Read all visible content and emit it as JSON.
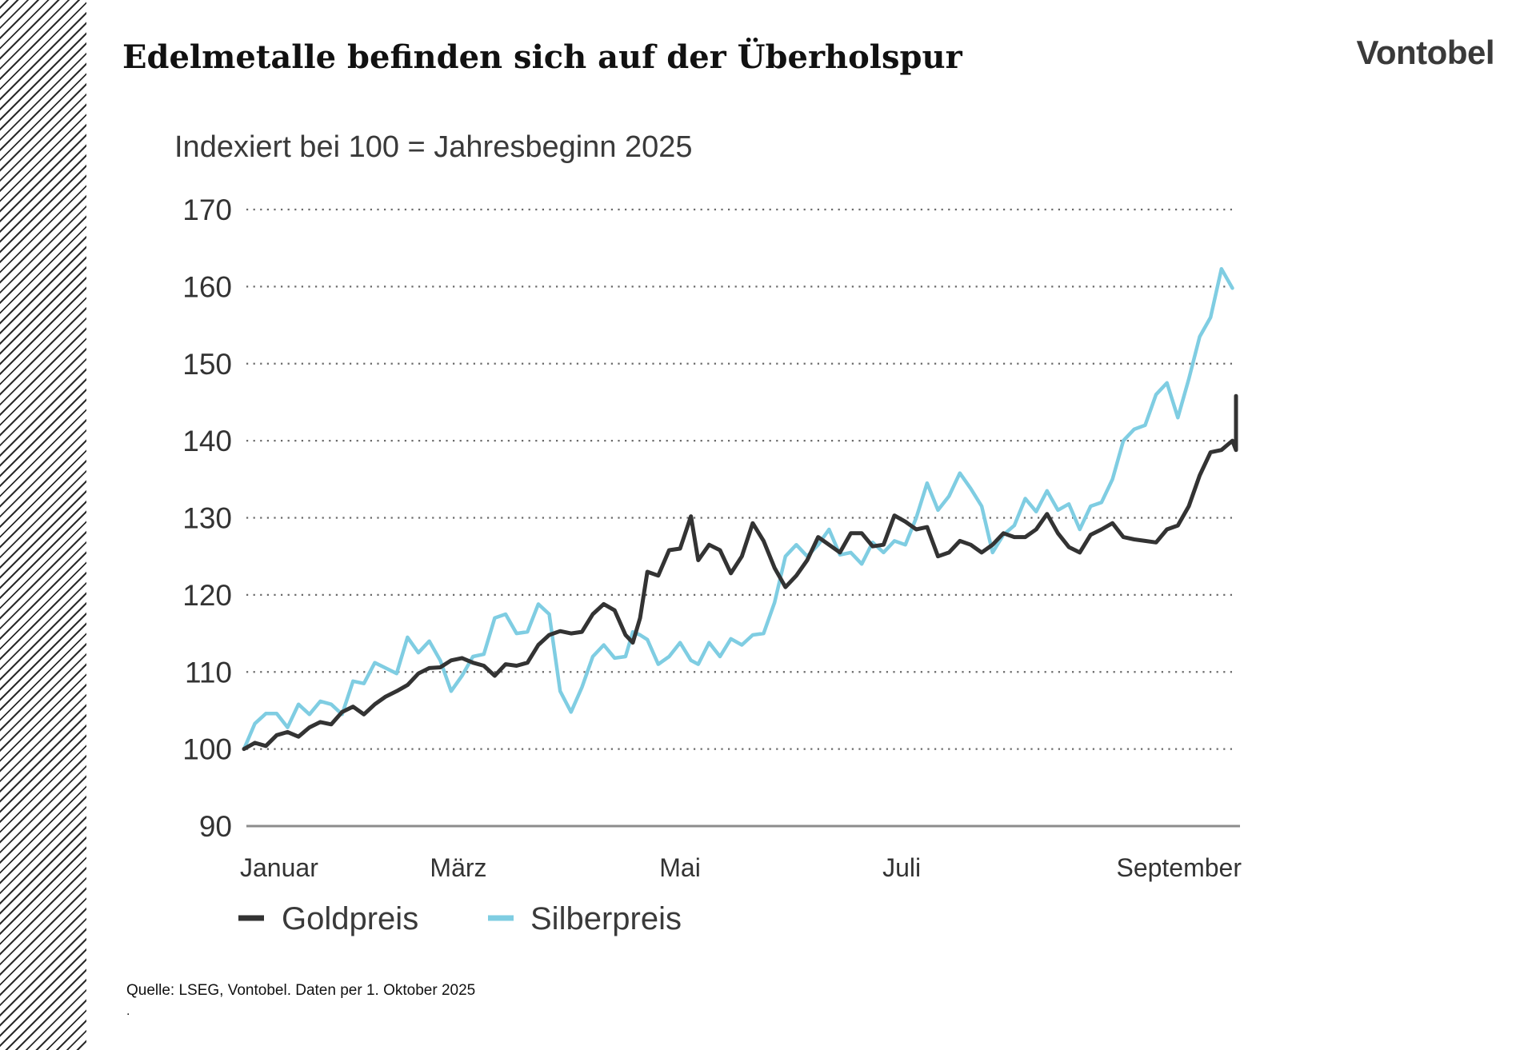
{
  "header": {
    "title": "Edelmetalle befinden sich auf der Überholspur",
    "logo": "Vontobel"
  },
  "footer": {
    "source": "Quelle: LSEG, Vontobel. Daten per 1. Oktober 2025",
    "dot": "."
  },
  "colors": {
    "gold": "#333333",
    "silver": "#7fcde2"
  },
  "chart_data": {
    "type": "line",
    "subtitle": "Indexiert bei 100 = Jahresbeginn 2025",
    "xlabel": "",
    "ylabel": "",
    "ylim": [
      90,
      170
    ],
    "yticks": [
      "170",
      "160",
      "150",
      "140",
      "130",
      "120",
      "110",
      "100",
      "90"
    ],
    "grid": true,
    "legend_position": "bottom-left",
    "x_domain": [
      "2025-01-01",
      "2025-10-01"
    ],
    "x_tick_labels": [
      {
        "label": "Januar",
        "date": "2025-01-01"
      },
      {
        "label": "März",
        "date": "2025-03-01"
      },
      {
        "label": "Mai",
        "date": "2025-05-01"
      },
      {
        "label": "Juli",
        "date": "2025-07-01"
      },
      {
        "label": "September",
        "date": "2025-09-01"
      }
    ],
    "series": [
      {
        "name": "Goldpreis",
        "points": [
          [
            "2025-01-01",
            100
          ],
          [
            "2025-01-04",
            100.8
          ],
          [
            "2025-01-07",
            100.4
          ],
          [
            "2025-01-10",
            101.8
          ],
          [
            "2025-01-13",
            102.2
          ],
          [
            "2025-01-16",
            101.6
          ],
          [
            "2025-01-19",
            102.8
          ],
          [
            "2025-01-22",
            103.5
          ],
          [
            "2025-01-25",
            103.2
          ],
          [
            "2025-01-28",
            104.8
          ],
          [
            "2025-01-31",
            105.5
          ],
          [
            "2025-02-03",
            104.5
          ],
          [
            "2025-02-06",
            105.8
          ],
          [
            "2025-02-09",
            106.8
          ],
          [
            "2025-02-12",
            107.5
          ],
          [
            "2025-02-15",
            108.3
          ],
          [
            "2025-02-18",
            109.8
          ],
          [
            "2025-02-21",
            110.5
          ],
          [
            "2025-02-24",
            110.6
          ],
          [
            "2025-02-27",
            111.5
          ],
          [
            "2025-03-02",
            111.8
          ],
          [
            "2025-03-05",
            111.2
          ],
          [
            "2025-03-08",
            110.8
          ],
          [
            "2025-03-11",
            109.5
          ],
          [
            "2025-03-14",
            111
          ],
          [
            "2025-03-17",
            110.8
          ],
          [
            "2025-03-20",
            111.2
          ],
          [
            "2025-03-23",
            113.5
          ],
          [
            "2025-03-26",
            114.8
          ],
          [
            "2025-03-29",
            115.3
          ],
          [
            "2025-04-01",
            115
          ],
          [
            "2025-04-04",
            115.2
          ],
          [
            "2025-04-07",
            117.5
          ],
          [
            "2025-04-10",
            118.8
          ],
          [
            "2025-04-13",
            118
          ],
          [
            "2025-04-16",
            114.8
          ],
          [
            "2025-04-18",
            113.8
          ],
          [
            "2025-04-20",
            117
          ],
          [
            "2025-04-22",
            123
          ],
          [
            "2025-04-25",
            122.5
          ],
          [
            "2025-04-28",
            125.8
          ],
          [
            "2025-05-01",
            126
          ],
          [
            "2025-05-04",
            130.2
          ],
          [
            "2025-05-06",
            124.5
          ],
          [
            "2025-05-09",
            126.5
          ],
          [
            "2025-05-12",
            125.8
          ],
          [
            "2025-05-15",
            122.8
          ],
          [
            "2025-05-18",
            125
          ],
          [
            "2025-05-21",
            129.3
          ],
          [
            "2025-05-24",
            127
          ],
          [
            "2025-05-27",
            123.5
          ],
          [
            "2025-05-30",
            121
          ],
          [
            "2025-06-02",
            122.5
          ],
          [
            "2025-06-05",
            124.5
          ],
          [
            "2025-06-08",
            127.5
          ],
          [
            "2025-06-11",
            126.5
          ],
          [
            "2025-06-14",
            125.5
          ],
          [
            "2025-06-17",
            128
          ],
          [
            "2025-06-20",
            128
          ],
          [
            "2025-06-23",
            126.3
          ],
          [
            "2025-06-26",
            126.5
          ],
          [
            "2025-06-29",
            130.3
          ],
          [
            "2025-07-02",
            129.5
          ],
          [
            "2025-07-05",
            128.5
          ],
          [
            "2025-07-08",
            128.8
          ],
          [
            "2025-07-11",
            125
          ],
          [
            "2025-07-14",
            125.5
          ],
          [
            "2025-07-17",
            127
          ],
          [
            "2025-07-20",
            126.5
          ],
          [
            "2025-07-23",
            125.5
          ],
          [
            "2025-07-26",
            126.5
          ],
          [
            "2025-07-29",
            128
          ],
          [
            "2025-08-01",
            127.5
          ],
          [
            "2025-08-04",
            127.5
          ],
          [
            "2025-08-07",
            128.5
          ],
          [
            "2025-08-10",
            130.5
          ],
          [
            "2025-08-13",
            128
          ],
          [
            "2025-08-16",
            126.2
          ],
          [
            "2025-08-19",
            125.5
          ],
          [
            "2025-08-22",
            127.8
          ],
          [
            "2025-08-25",
            128.5
          ],
          [
            "2025-08-28",
            129.3
          ],
          [
            "2025-08-31",
            127.5
          ],
          [
            "2025-09-03",
            127.2
          ],
          [
            "2025-09-06",
            127
          ],
          [
            "2025-09-09",
            126.8
          ],
          [
            "2025-09-12",
            128.5
          ],
          [
            "2025-09-15",
            129
          ],
          [
            "2025-09-18",
            131.5
          ],
          [
            "2025-09-21",
            135.5
          ],
          [
            "2025-09-24",
            138.5
          ],
          [
            "2025-09-27",
            138.8
          ],
          [
            "2025-09-30",
            140
          ],
          [
            "2025-10-01",
            138.8
          ],
          [
            "2025-10-01",
            142.5
          ],
          [
            "2025-10-01",
            145.8
          ]
        ]
      },
      {
        "name": "Silberpreis",
        "points": [
          [
            "2025-01-01",
            100
          ],
          [
            "2025-01-04",
            103.3
          ],
          [
            "2025-01-07",
            104.6
          ],
          [
            "2025-01-10",
            104.6
          ],
          [
            "2025-01-13",
            102.8
          ],
          [
            "2025-01-16",
            105.8
          ],
          [
            "2025-01-19",
            104.5
          ],
          [
            "2025-01-22",
            106.2
          ],
          [
            "2025-01-25",
            105.8
          ],
          [
            "2025-01-28",
            104.5
          ],
          [
            "2025-01-31",
            108.8
          ],
          [
            "2025-02-03",
            108.5
          ],
          [
            "2025-02-06",
            111.2
          ],
          [
            "2025-02-09",
            110.5
          ],
          [
            "2025-02-12",
            109.8
          ],
          [
            "2025-02-15",
            114.5
          ],
          [
            "2025-02-18",
            112.5
          ],
          [
            "2025-02-21",
            114
          ],
          [
            "2025-02-24",
            111.5
          ],
          [
            "2025-02-27",
            107.5
          ],
          [
            "2025-03-02",
            109.5
          ],
          [
            "2025-03-05",
            112
          ],
          [
            "2025-03-08",
            112.3
          ],
          [
            "2025-03-11",
            117
          ],
          [
            "2025-03-14",
            117.5
          ],
          [
            "2025-03-17",
            115
          ],
          [
            "2025-03-20",
            115.2
          ],
          [
            "2025-03-23",
            118.8
          ],
          [
            "2025-03-26",
            117.5
          ],
          [
            "2025-03-29",
            107.5
          ],
          [
            "2025-04-01",
            104.8
          ],
          [
            "2025-04-04",
            108
          ],
          [
            "2025-04-07",
            112
          ],
          [
            "2025-04-10",
            113.5
          ],
          [
            "2025-04-13",
            111.8
          ],
          [
            "2025-04-16",
            112
          ],
          [
            "2025-04-18",
            115.2
          ],
          [
            "2025-04-20",
            114.8
          ],
          [
            "2025-04-22",
            114.2
          ],
          [
            "2025-04-25",
            111
          ],
          [
            "2025-04-28",
            112
          ],
          [
            "2025-05-01",
            113.8
          ],
          [
            "2025-05-04",
            111.5
          ],
          [
            "2025-05-06",
            111
          ],
          [
            "2025-05-09",
            113.8
          ],
          [
            "2025-05-12",
            112
          ],
          [
            "2025-05-15",
            114.3
          ],
          [
            "2025-05-18",
            113.5
          ],
          [
            "2025-05-21",
            114.8
          ],
          [
            "2025-05-24",
            115
          ],
          [
            "2025-05-27",
            119
          ],
          [
            "2025-05-30",
            125
          ],
          [
            "2025-06-02",
            126.5
          ],
          [
            "2025-06-05",
            125
          ],
          [
            "2025-06-08",
            126.5
          ],
          [
            "2025-06-11",
            128.5
          ],
          [
            "2025-06-14",
            125.2
          ],
          [
            "2025-06-17",
            125.5
          ],
          [
            "2025-06-20",
            124
          ],
          [
            "2025-06-23",
            126.8
          ],
          [
            "2025-06-26",
            125.5
          ],
          [
            "2025-06-29",
            127
          ],
          [
            "2025-07-02",
            126.5
          ],
          [
            "2025-07-05",
            130
          ],
          [
            "2025-07-08",
            134.5
          ],
          [
            "2025-07-11",
            131
          ],
          [
            "2025-07-14",
            132.8
          ],
          [
            "2025-07-17",
            135.8
          ],
          [
            "2025-07-20",
            133.8
          ],
          [
            "2025-07-23",
            131.5
          ],
          [
            "2025-07-26",
            125.5
          ],
          [
            "2025-07-29",
            127.8
          ],
          [
            "2025-08-01",
            129
          ],
          [
            "2025-08-04",
            132.5
          ],
          [
            "2025-08-07",
            130.8
          ],
          [
            "2025-08-10",
            133.5
          ],
          [
            "2025-08-13",
            131
          ],
          [
            "2025-08-16",
            131.8
          ],
          [
            "2025-08-19",
            128.5
          ],
          [
            "2025-08-22",
            131.5
          ],
          [
            "2025-08-25",
            132
          ],
          [
            "2025-08-28",
            135
          ],
          [
            "2025-08-31",
            140
          ],
          [
            "2025-09-03",
            141.5
          ],
          [
            "2025-09-06",
            142
          ],
          [
            "2025-09-09",
            146
          ],
          [
            "2025-09-12",
            147.5
          ],
          [
            "2025-09-15",
            143
          ],
          [
            "2025-09-18",
            148
          ],
          [
            "2025-09-21",
            153.5
          ],
          [
            "2025-09-24",
            156
          ],
          [
            "2025-09-27",
            162.3
          ],
          [
            "2025-09-30",
            159.8
          ]
        ]
      }
    ]
  }
}
